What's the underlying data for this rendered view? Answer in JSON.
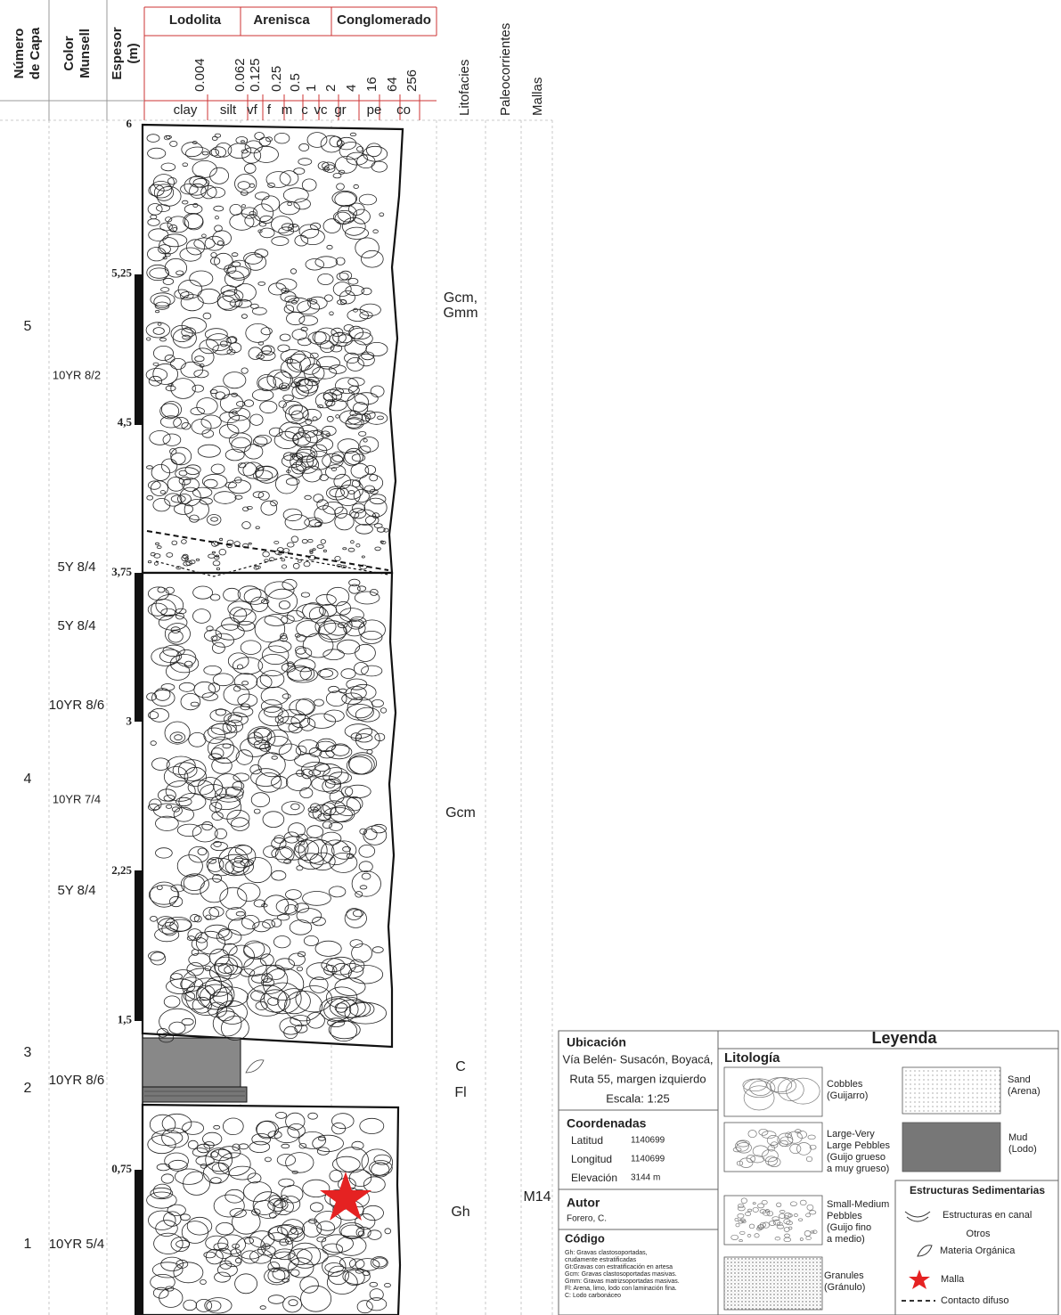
{
  "header": {
    "columns": [
      [
        "Número",
        "de Capa"
      ],
      [
        "Color",
        "Munsell"
      ],
      [
        "Espesor",
        "(m)"
      ]
    ],
    "groups": [
      "Lodolita",
      "Arenisca",
      "Conglomerado"
    ],
    "grain_sizes": [
      "0.004",
      "0.062",
      "0.125",
      "0.25",
      "0.5",
      "1",
      "2",
      "4",
      "16",
      "64",
      "256"
    ],
    "grain_classes": [
      "clay",
      "silt",
      "vf",
      "f",
      "m",
      "c",
      "vc",
      "gr",
      "pe",
      "co"
    ],
    "right_columns": [
      "Litofacies",
      "Paleocorrientes",
      "Mallas"
    ]
  },
  "depth_labels": [
    "6",
    "5,25",
    "4,5",
    "3,75",
    "3",
    "2,25",
    "1,5",
    "0,75"
  ],
  "layer_numbers": [
    "5",
    "4",
    "3",
    "2",
    "1"
  ],
  "munsell_colors": [
    "10YR 8/2",
    "5Y 8/4",
    "5Y 8/4",
    "10YR 8/6",
    "10YR 7/4",
    "5Y 8/4",
    "10YR 8/6",
    "10YR 5/4"
  ],
  "lithofacies": [
    [
      "Gcm,",
      "Gmm"
    ],
    [
      "Gcm"
    ],
    [
      "C"
    ],
    [
      "Fl"
    ],
    [
      "Gh"
    ]
  ],
  "mallas": [
    "M14"
  ],
  "location": {
    "title": "Ubicación",
    "lines": [
      "Vía Belén- Susacón, Boyacá,",
      "Ruta 55, margen izquierdo",
      "Escala: 1:25"
    ]
  },
  "coordinates": {
    "title": "Coordenadas",
    "rows": [
      [
        "Latitud",
        "1140699"
      ],
      [
        "Longitud",
        "1140699"
      ],
      [
        "Elevación",
        "3144 m"
      ]
    ]
  },
  "author": {
    "title": "Autor",
    "name": "Forero, C."
  },
  "code": {
    "title": "Código",
    "lines": [
      "Gh: Gravas clastosoportadas,",
      "crudamente estratificadas",
      "Gt:Gravas con estratificación en artesa",
      "Gcm: Gravas clastosoportadas masivas.",
      "Gmm: Gravas matrizsoportadas masivas.",
      "Fl: Arena, limo, lodo con laminación fina.",
      "C: Lodo carbonáceo"
    ]
  },
  "legend": {
    "title": "Leyenda",
    "lithology_title": "Litología",
    "lithology": [
      [
        "Cobbles",
        "(Guijarro)"
      ],
      [
        "Sand",
        "(Arena)"
      ],
      [
        "Large-Very",
        "Large Pebbles",
        "(Guijo grueso",
        "a muy grueso)"
      ],
      [
        "Mud",
        "(Lodo)"
      ],
      [
        "Small-Medium",
        "Pebbles",
        "(Guijo fino",
        "a medio)"
      ],
      [
        "Granules",
        "(Gránulo)"
      ]
    ],
    "structures_title": "Estructuras Sedimentarias",
    "structures": [
      "Estructuras en canal",
      "Otros",
      "Materia Orgánica",
      "Malla",
      "Contacto difuso"
    ]
  }
}
